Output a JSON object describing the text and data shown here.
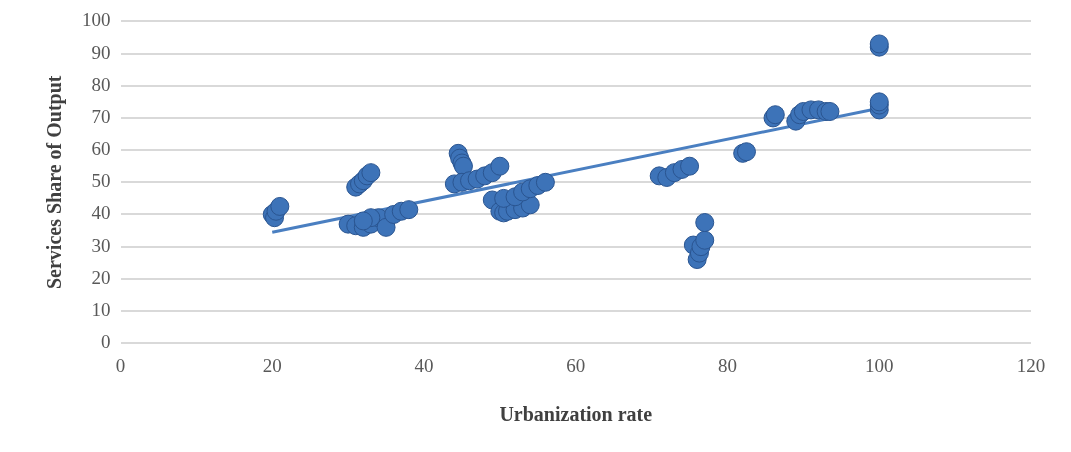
{
  "chart_data": {
    "type": "scatter",
    "xlabel": "Urbanization rate",
    "ylabel": "Services Share of Output",
    "xlim": [
      0,
      120
    ],
    "xticks": [
      0,
      20,
      40,
      60,
      80,
      100,
      120
    ],
    "ylim": [
      0,
      100
    ],
    "yticks": [
      0,
      10,
      20,
      30,
      40,
      50,
      60,
      70,
      80,
      90,
      100
    ],
    "grid": "y",
    "legend": false,
    "marker": "circle",
    "series": [
      {
        "color": "#3d73b8",
        "x": [
          20,
          20.3,
          20.5,
          21,
          31,
          31.5,
          32,
          32.5,
          33,
          30,
          31,
          32,
          33,
          34,
          35,
          36,
          37,
          38,
          33,
          32,
          44.5,
          44.7,
          45,
          45.2,
          44,
          45,
          46,
          47,
          48,
          49,
          50,
          49,
          50,
          50.5,
          51,
          52,
          53,
          54,
          50.5,
          52,
          53,
          54,
          55,
          56,
          71,
          72,
          73,
          74,
          75,
          82,
          82.5,
          75.5,
          76,
          76.3,
          76.5,
          77,
          77,
          86,
          86.3,
          89,
          89.5,
          90,
          91,
          92,
          93,
          93.5,
          100,
          100,
          100,
          100,
          100
        ],
        "values": [
          40,
          39,
          41,
          42.5,
          48.5,
          49.5,
          50.5,
          52,
          53,
          37,
          36.5,
          36,
          37,
          39,
          36,
          40,
          41,
          41.5,
          39,
          38,
          59,
          57.5,
          56,
          55,
          49.5,
          50,
          50.5,
          51,
          52,
          53,
          55,
          44.5,
          41,
          40.5,
          41,
          41.5,
          42,
          43,
          45,
          45.5,
          47,
          48,
          49,
          50,
          52,
          51.5,
          53,
          54,
          55,
          59,
          59.5,
          30.5,
          26,
          28,
          30,
          32,
          37.5,
          70,
          71,
          69,
          71,
          72,
          72.5,
          72.5,
          72,
          72,
          72.5,
          74,
          75,
          92,
          93
        ]
      },
      {
        "type": "line",
        "color": "#4a7fc1",
        "x": [
          20,
          100
        ],
        "values": [
          34.5,
          73
        ],
        "marker": "none",
        "line_style": "solid"
      }
    ]
  }
}
